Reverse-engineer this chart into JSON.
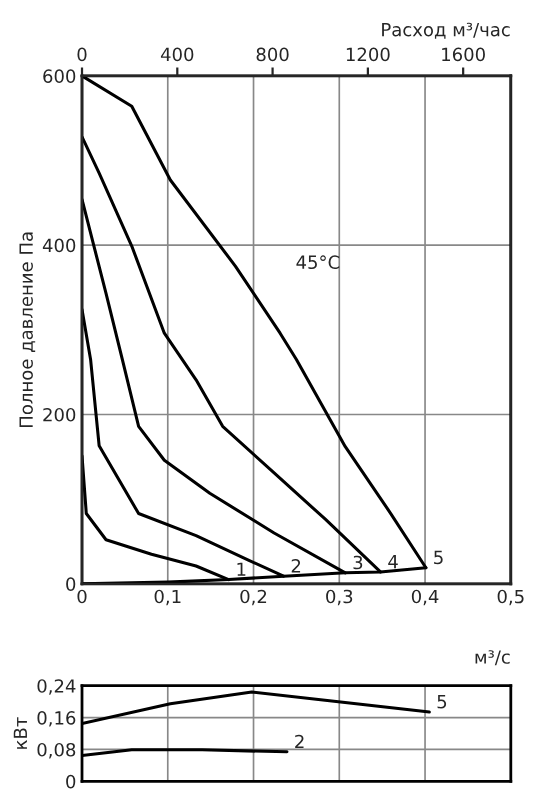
{
  "chart_data": [
    {
      "type": "line",
      "ylabel": "Полное давление Па",
      "xlabel": "м³/с",
      "x2label": "Расход м³/час",
      "xlim": [
        0,
        0.5
      ],
      "xticks": [
        0,
        {
          "value": 0.1,
          "label": "0,1"
        },
        {
          "value": 0.2,
          "label": "0,2"
        },
        {
          "value": 0.3,
          "label": "0,3"
        },
        {
          "value": 0.4,
          "label": "0,4"
        },
        {
          "value": 0.5,
          "label": "0,5"
        }
      ],
      "x2lim": [
        0,
        1800
      ],
      "x2ticks": [
        0,
        400,
        800,
        1200,
        1600
      ],
      "ylim": [
        0,
        600
      ],
      "yticks": [
        0,
        200,
        400,
        600
      ],
      "grid": true,
      "line_style": "solid",
      "marker": "none",
      "annotations": [
        "45°C"
      ],
      "series": [
        {
          "name": "1",
          "color": "#000000",
          "x": [
            0,
            0.005,
            0.028,
            0.081,
            0.133,
            0.171
          ],
          "values": [
            151,
            83,
            52,
            35,
            21,
            5
          ]
        },
        {
          "name": "2",
          "color": "#000000",
          "x": [
            0,
            0.01,
            0.02,
            0.066,
            0.133,
            0.194,
            0.235
          ],
          "values": [
            324,
            265,
            163,
            83,
            57,
            28,
            9
          ]
        },
        {
          "name": "3",
          "color": "#000000",
          "x": [
            0,
            0.028,
            0.047,
            0.066,
            0.096,
            0.149,
            0.224,
            0.307
          ],
          "values": [
            454,
            343,
            265,
            186,
            146,
            107,
            60,
            13
          ]
        },
        {
          "name": "4",
          "color": "#000000",
          "x": [
            0,
            0.02,
            0.058,
            0.096,
            0.133,
            0.164,
            0.224,
            0.284,
            0.348
          ],
          "values": [
            528,
            485,
            399,
            296,
            241,
            186,
            131,
            76,
            14
          ]
        },
        {
          "name": "5",
          "color": "#000000",
          "x": [
            0,
            0.058,
            0.103,
            0.179,
            0.231,
            0.25,
            0.307,
            0.36,
            0.401
          ],
          "values": [
            600,
            564,
            477,
            375,
            296,
            265,
            162,
            83,
            19
          ]
        },
        {
          "color": "#000000",
          "x": [
            0,
            0.1,
            0.171,
            0.235,
            0.307,
            0.348,
            0.401
          ],
          "values": [
            0,
            2,
            5,
            9,
            13,
            14,
            19
          ]
        }
      ]
    },
    {
      "type": "line",
      "ylabel": "кВт",
      "xlim": [
        0,
        0.5
      ],
      "xticks": [
        0,
        0.1,
        0.2,
        0.3,
        0.4,
        0.5
      ],
      "tick_labels": "y",
      "ylim": [
        0,
        0.24
      ],
      "yticks": [
        0,
        {
          "value": 0.08,
          "label": "0,08"
        },
        {
          "value": 0.16,
          "label": "0,16"
        },
        {
          "value": 0.24,
          "label": "0,24"
        }
      ],
      "grid": true,
      "line_style": "solid",
      "marker": "none",
      "series": [
        {
          "name": "5",
          "color": "#000000",
          "x": [
            0,
            0.103,
            0.198,
            0.299,
            0.405
          ],
          "values": [
            0.145,
            0.195,
            0.224,
            0.2,
            0.174
          ]
        },
        {
          "name": "2",
          "color": "#000000",
          "x": [
            0,
            0.058,
            0.14,
            0.239
          ],
          "values": [
            0.065,
            0.079,
            0.079,
            0.074
          ]
        }
      ]
    }
  ]
}
